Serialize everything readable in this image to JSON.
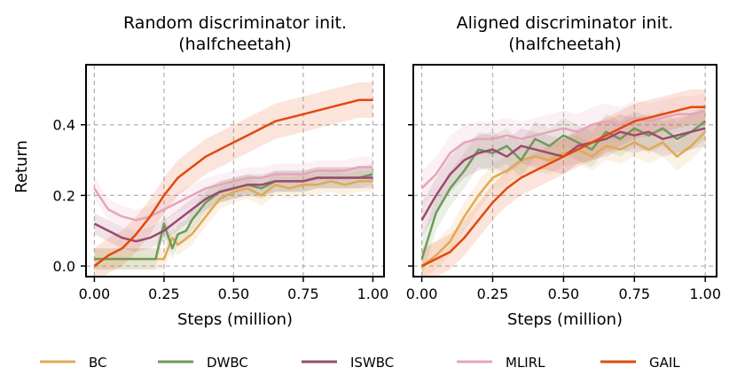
{
  "chart_data": [
    {
      "type": "line",
      "title_line1": "Random discriminator init.",
      "title_line2": "(halfcheetah)",
      "xlabel": "Steps (million)",
      "ylabel": "Return",
      "xlim": [
        -0.03,
        1.04
      ],
      "ylim": [
        -0.03,
        0.57
      ],
      "xticks": [
        0.0,
        0.25,
        0.5,
        0.75,
        1.0
      ],
      "xtick_labels": [
        "0.00",
        "0.25",
        "0.50",
        "0.75",
        "1.00"
      ],
      "yticks": [
        0.0,
        0.2,
        0.4
      ],
      "ytick_labels": [
        "0.0",
        "0.2",
        "0.4"
      ],
      "series": [
        {
          "name": "BC",
          "x": [
            0.0,
            0.05,
            0.1,
            0.15,
            0.2,
            0.25,
            0.28,
            0.3,
            0.35,
            0.4,
            0.45,
            0.5,
            0.55,
            0.6,
            0.65,
            0.7,
            0.75,
            0.8,
            0.85,
            0.9,
            0.95,
            1.0
          ],
          "y": [
            0.02,
            0.02,
            0.02,
            0.02,
            0.02,
            0.02,
            0.08,
            0.06,
            0.09,
            0.14,
            0.19,
            0.21,
            0.22,
            0.2,
            0.23,
            0.22,
            0.23,
            0.23,
            0.24,
            0.23,
            0.24,
            0.24
          ],
          "band": 0.03
        },
        {
          "name": "DWBC",
          "x": [
            0.0,
            0.05,
            0.1,
            0.15,
            0.2,
            0.22,
            0.25,
            0.28,
            0.3,
            0.33,
            0.35,
            0.4,
            0.45,
            0.5,
            0.55,
            0.6,
            0.65,
            0.7,
            0.75,
            0.8,
            0.85,
            0.9,
            0.95,
            1.0
          ],
          "y": [
            0.02,
            0.02,
            0.02,
            0.02,
            0.02,
            0.02,
            0.12,
            0.05,
            0.09,
            0.1,
            0.13,
            0.18,
            0.21,
            0.22,
            0.23,
            0.22,
            0.24,
            0.24,
            0.24,
            0.25,
            0.25,
            0.25,
            0.25,
            0.26
          ],
          "band": 0.03
        },
        {
          "name": "ISWBC",
          "x": [
            0.0,
            0.05,
            0.1,
            0.15,
            0.2,
            0.25,
            0.3,
            0.35,
            0.4,
            0.45,
            0.5,
            0.55,
            0.6,
            0.65,
            0.7,
            0.75,
            0.8,
            0.85,
            0.9,
            0.95,
            1.0
          ],
          "y": [
            0.12,
            0.1,
            0.08,
            0.07,
            0.08,
            0.1,
            0.13,
            0.16,
            0.19,
            0.21,
            0.22,
            0.23,
            0.23,
            0.24,
            0.24,
            0.24,
            0.25,
            0.25,
            0.25,
            0.25,
            0.25
          ],
          "band": 0.03
        },
        {
          "name": "MLIRL",
          "x": [
            0.0,
            0.05,
            0.1,
            0.15,
            0.2,
            0.25,
            0.3,
            0.35,
            0.4,
            0.45,
            0.5,
            0.55,
            0.6,
            0.65,
            0.7,
            0.75,
            0.8,
            0.85,
            0.9,
            0.95,
            1.0
          ],
          "y": [
            0.22,
            0.16,
            0.14,
            0.13,
            0.14,
            0.16,
            0.18,
            0.2,
            0.22,
            0.23,
            0.24,
            0.25,
            0.25,
            0.26,
            0.26,
            0.26,
            0.27,
            0.27,
            0.27,
            0.28,
            0.28
          ],
          "band": 0.03
        },
        {
          "name": "GAIL",
          "x": [
            0.0,
            0.05,
            0.1,
            0.15,
            0.2,
            0.25,
            0.3,
            0.35,
            0.4,
            0.45,
            0.5,
            0.55,
            0.6,
            0.65,
            0.7,
            0.75,
            0.8,
            0.85,
            0.9,
            0.95,
            1.0
          ],
          "y": [
            0.0,
            0.03,
            0.05,
            0.09,
            0.14,
            0.2,
            0.25,
            0.28,
            0.31,
            0.33,
            0.35,
            0.37,
            0.39,
            0.41,
            0.42,
            0.43,
            0.44,
            0.45,
            0.46,
            0.47,
            0.47
          ],
          "band": 0.05
        }
      ]
    },
    {
      "type": "line",
      "title_line1": "Aligned discriminator init.",
      "title_line2": "(halfcheetah)",
      "xlabel": "Steps (million)",
      "ylabel": "",
      "xlim": [
        -0.03,
        1.04
      ],
      "ylim": [
        -0.03,
        0.57
      ],
      "xticks": [
        0.0,
        0.25,
        0.5,
        0.75,
        1.0
      ],
      "xtick_labels": [
        "0.00",
        "0.25",
        "0.50",
        "0.75",
        "1.00"
      ],
      "yticks": [
        0.0,
        0.2,
        0.4
      ],
      "ytick_labels": [
        "",
        "",
        ""
      ],
      "series": [
        {
          "name": "BC",
          "x": [
            0.0,
            0.05,
            0.1,
            0.15,
            0.2,
            0.25,
            0.3,
            0.35,
            0.4,
            0.45,
            0.5,
            0.55,
            0.6,
            0.65,
            0.7,
            0.75,
            0.8,
            0.85,
            0.9,
            0.95,
            1.0
          ],
          "y": [
            0.0,
            0.03,
            0.07,
            0.14,
            0.2,
            0.25,
            0.27,
            0.3,
            0.31,
            0.3,
            0.32,
            0.33,
            0.31,
            0.34,
            0.33,
            0.35,
            0.33,
            0.35,
            0.31,
            0.34,
            0.38
          ],
          "band": 0.04
        },
        {
          "name": "DWBC",
          "x": [
            0.0,
            0.05,
            0.1,
            0.15,
            0.2,
            0.25,
            0.3,
            0.35,
            0.4,
            0.45,
            0.5,
            0.55,
            0.6,
            0.65,
            0.7,
            0.75,
            0.8,
            0.85,
            0.9,
            0.95,
            1.0
          ],
          "y": [
            0.02,
            0.15,
            0.22,
            0.27,
            0.33,
            0.32,
            0.34,
            0.3,
            0.36,
            0.34,
            0.37,
            0.35,
            0.33,
            0.38,
            0.36,
            0.39,
            0.37,
            0.39,
            0.36,
            0.38,
            0.41
          ],
          "band": 0.05
        },
        {
          "name": "ISWBC",
          "x": [
            0.0,
            0.05,
            0.1,
            0.15,
            0.2,
            0.25,
            0.3,
            0.35,
            0.4,
            0.45,
            0.5,
            0.55,
            0.6,
            0.65,
            0.7,
            0.75,
            0.8,
            0.85,
            0.9,
            0.95,
            1.0
          ],
          "y": [
            0.13,
            0.2,
            0.26,
            0.3,
            0.32,
            0.33,
            0.31,
            0.34,
            0.33,
            0.32,
            0.31,
            0.34,
            0.35,
            0.36,
            0.38,
            0.37,
            0.38,
            0.36,
            0.37,
            0.38,
            0.39
          ],
          "band": 0.05
        },
        {
          "name": "MLIRL",
          "x": [
            0.0,
            0.05,
            0.1,
            0.15,
            0.2,
            0.25,
            0.3,
            0.35,
            0.4,
            0.45,
            0.5,
            0.55,
            0.6,
            0.65,
            0.7,
            0.75,
            0.8,
            0.85,
            0.9,
            0.95,
            1.0
          ],
          "y": [
            0.22,
            0.26,
            0.32,
            0.35,
            0.36,
            0.36,
            0.37,
            0.36,
            0.37,
            0.38,
            0.39,
            0.38,
            0.4,
            0.41,
            0.4,
            0.42,
            0.41,
            0.42,
            0.43,
            0.43,
            0.44
          ],
          "band": 0.05
        },
        {
          "name": "GAIL",
          "x": [
            0.0,
            0.05,
            0.1,
            0.15,
            0.2,
            0.25,
            0.3,
            0.35,
            0.4,
            0.45,
            0.5,
            0.55,
            0.6,
            0.65,
            0.7,
            0.75,
            0.8,
            0.85,
            0.9,
            0.95,
            1.0
          ],
          "y": [
            0.0,
            0.02,
            0.04,
            0.08,
            0.13,
            0.18,
            0.22,
            0.25,
            0.27,
            0.29,
            0.31,
            0.33,
            0.35,
            0.37,
            0.39,
            0.41,
            0.42,
            0.43,
            0.44,
            0.45,
            0.45
          ],
          "band": 0.05
        }
      ]
    }
  ],
  "legend": {
    "items": [
      {
        "name": "BC",
        "color": "#e3a852"
      },
      {
        "name": "DWBC",
        "color": "#6f9a5a"
      },
      {
        "name": "ISWBC",
        "color": "#9c4a6e"
      },
      {
        "name": "MLIRL",
        "color": "#e6a4ba"
      },
      {
        "name": "GAIL",
        "color": "#e2490f"
      }
    ]
  }
}
